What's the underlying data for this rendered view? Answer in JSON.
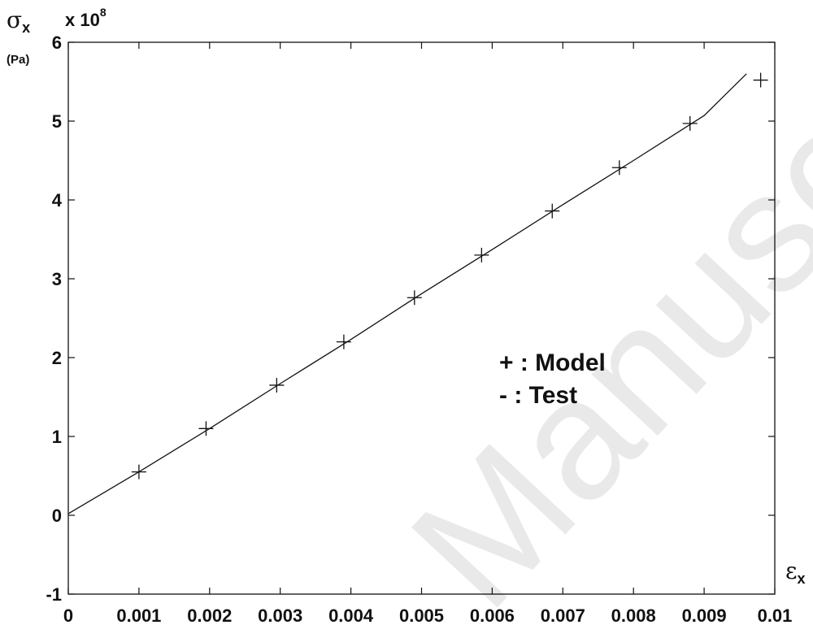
{
  "chart_data": {
    "type": "line",
    "title": "",
    "xlabel": {
      "symbol": "ε",
      "subscript": "x"
    },
    "ylabel": {
      "symbol": "σ",
      "subscript": "x",
      "unit": "(Pa)"
    },
    "y_scale_label": {
      "base": "x 10",
      "exponent": "8"
    },
    "xlim": [
      0,
      0.01
    ],
    "ylim": [
      -1,
      6
    ],
    "x_ticks": [
      0,
      0.001,
      0.002,
      0.003,
      0.004,
      0.005,
      0.006,
      0.007,
      0.008,
      0.009,
      0.01
    ],
    "x_tick_labels": [
      "0",
      "0.001",
      "0.002",
      "0.003",
      "0.004",
      "0.005",
      "0.006",
      "0.007",
      "0.008",
      "0.009",
      "0.01"
    ],
    "y_ticks": [
      -1,
      0,
      1,
      2,
      3,
      4,
      5,
      6
    ],
    "y_tick_labels": [
      "-1",
      "0",
      "1",
      "2",
      "3",
      "4",
      "5",
      "6"
    ],
    "grid": false,
    "legend": {
      "position": "center-right",
      "entries": [
        "+ : Model",
        "- : Test"
      ]
    },
    "series": [
      {
        "name": "Model",
        "style": "markers-plus",
        "x": [
          0.001,
          0.00195,
          0.00295,
          0.0039,
          0.0049,
          0.00585,
          0.00685,
          0.0078,
          0.0088,
          0.0098
        ],
        "y": [
          0.55,
          1.1,
          1.65,
          2.2,
          2.76,
          3.3,
          3.86,
          4.41,
          4.97,
          5.52
        ]
      },
      {
        "name": "Test",
        "style": "line",
        "x": [
          0,
          0.001,
          0.002,
          0.003,
          0.004,
          0.005,
          0.006,
          0.007,
          0.008,
          0.009,
          0.0096
        ],
        "y": [
          0.02,
          0.55,
          1.1,
          1.67,
          2.23,
          2.81,
          3.37,
          3.94,
          4.5,
          5.07,
          5.6
        ]
      }
    ],
    "watermark": "Manuscri"
  }
}
